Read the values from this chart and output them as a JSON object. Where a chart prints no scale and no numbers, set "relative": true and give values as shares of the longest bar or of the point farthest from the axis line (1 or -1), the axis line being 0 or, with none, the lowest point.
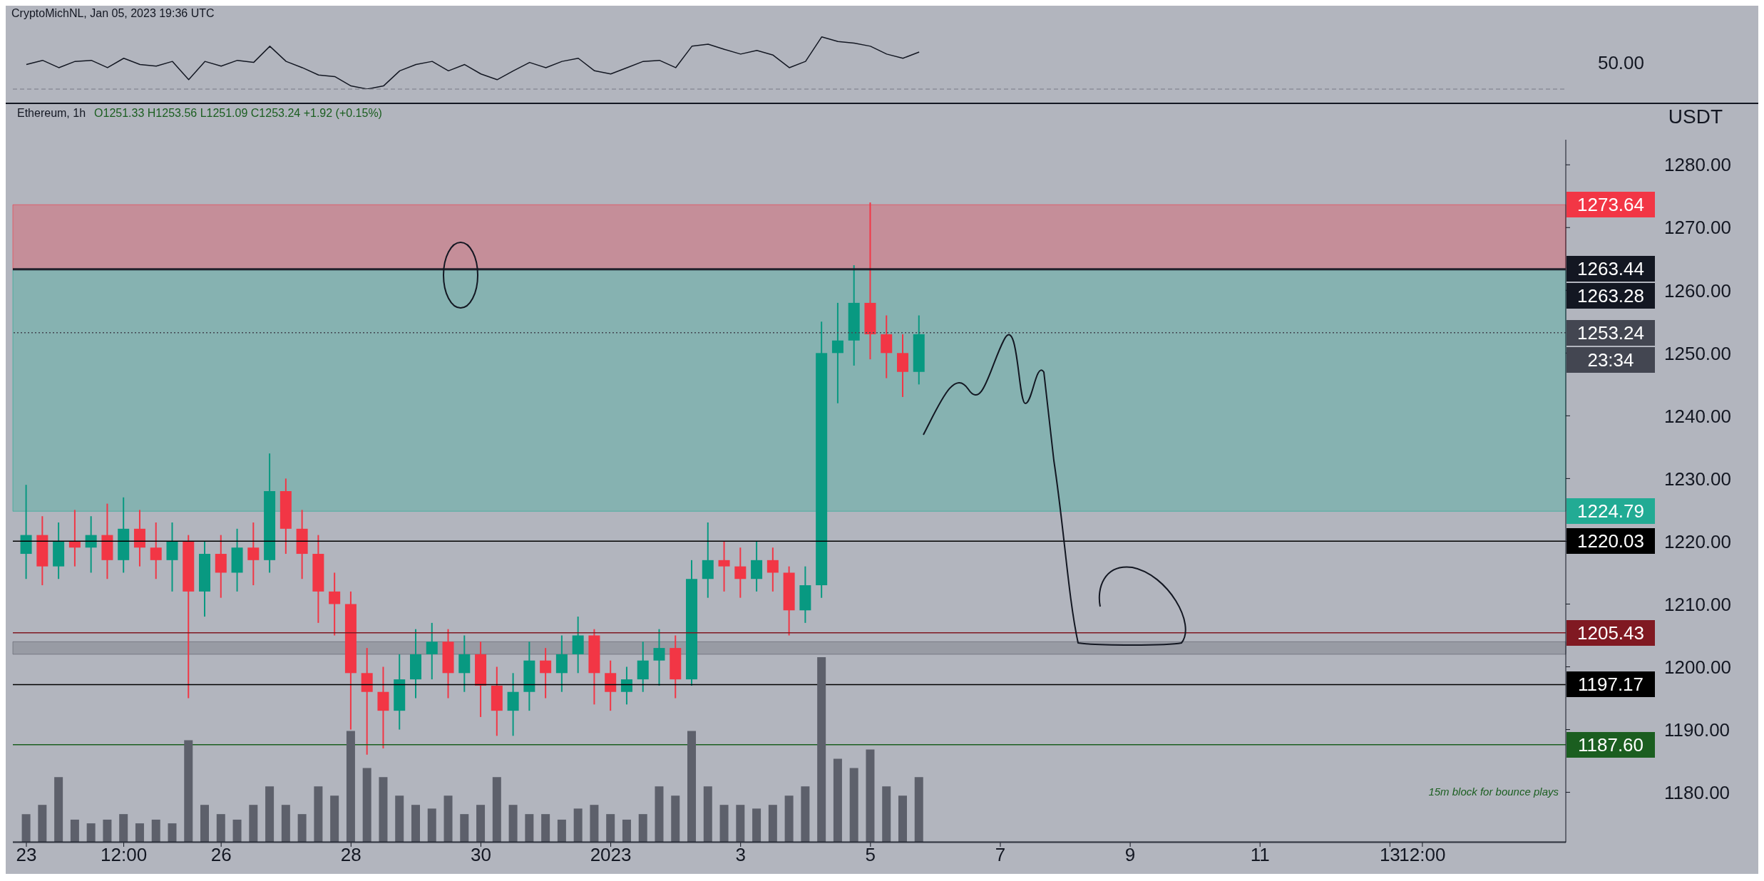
{
  "chart_data": [
    {
      "type": "line",
      "relative": true,
      "tick_labels": false,
      "color": "#131722",
      "xlim": [
        "2022-12-22T19:00",
        "2023-01-15T17:00"
      ],
      "x": [
        "2022-12-23T00:00",
        "2022-12-23T06:00",
        "2022-12-23T12:00",
        "2022-12-23T18:00",
        "2022-12-24T00:00",
        "2022-12-24T06:00",
        "2022-12-24T12:00",
        "2022-12-24T18:00",
        "2022-12-25T00:00",
        "2022-12-25T06:00",
        "2022-12-25T12:00",
        "2022-12-25T18:00",
        "2022-12-26T00:00",
        "2022-12-26T06:00",
        "2022-12-26T12:00",
        "2022-12-26T18:00",
        "2022-12-27T00:00",
        "2022-12-27T06:00",
        "2022-12-27T12:00",
        "2022-12-27T18:00",
        "2022-12-28T00:00",
        "2022-12-28T06:00",
        "2022-12-28T12:00",
        "2022-12-28T18:00",
        "2022-12-29T00:00",
        "2022-12-29T06:00",
        "2022-12-29T12:00",
        "2022-12-29T18:00",
        "2022-12-30T00:00",
        "2022-12-30T06:00",
        "2022-12-30T12:00",
        "2022-12-30T18:00",
        "2022-12-31T00:00",
        "2022-12-31T06:00",
        "2022-12-31T12:00",
        "2022-12-31T18:00",
        "2023-01-01T00:00",
        "2023-01-01T06:00",
        "2023-01-01T12:00",
        "2023-01-01T18:00",
        "2023-01-02T00:00",
        "2023-01-02T06:00",
        "2023-01-02T12:00",
        "2023-01-02T18:00",
        "2023-01-03T00:00",
        "2023-01-03T06:00",
        "2023-01-03T12:00",
        "2023-01-03T18:00",
        "2023-01-04T00:00",
        "2023-01-04T06:00",
        "2023-01-04T12:00",
        "2023-01-04T18:00",
        "2023-01-05T00:00",
        "2023-01-05T06:00",
        "2023-01-05T12:00",
        "2023-01-05T18:00"
      ],
      "values": [
        0.47,
        0.55,
        0.41,
        0.53,
        0.55,
        0.41,
        0.59,
        0.47,
        0.44,
        0.53,
        0.18,
        0.53,
        0.44,
        0.55,
        0.51,
        0.82,
        0.53,
        0.41,
        0.27,
        0.24,
        0.06,
        0,
        0.06,
        0.35,
        0.47,
        0.53,
        0.35,
        0.47,
        0.29,
        0.18,
        0.35,
        0.51,
        0.41,
        0.53,
        0.59,
        0.35,
        0.29,
        0.41,
        0.53,
        0.55,
        0.41,
        0.82,
        0.86,
        0.76,
        0.67,
        0.74,
        0.65,
        0.41,
        0.53,
        1,
        0.91,
        0.88,
        0.82,
        0.67,
        0.59,
        0.71
      ],
      "annotations": [
        "50.00"
      ]
    },
    {
      "type": "candlestick",
      "title": "Ethereum, 1h",
      "subtitle": "O1251.33 H1253.56 L1251.09 C1253.24 +1.92 (+0.15%)",
      "ylabel": "USDT",
      "annotations": [
        "CryptoMichNL, Jan 05, 2023 19:36 UTC",
        "23:34",
        "15m block for bounce plays"
      ],
      "xlim": [
        "2022-12-22T19:00",
        "2023-01-15T17:00"
      ],
      "xticks": [
        {
          "value": "2022-12-23",
          "label": "23"
        },
        {
          "value": "2022-12-24T12:00",
          "label": "12:00"
        },
        {
          "value": "2022-12-26",
          "label": "26"
        },
        {
          "value": "2022-12-28",
          "label": "28"
        },
        {
          "value": "2022-12-30",
          "label": "30"
        },
        {
          "value": "2023-01-01",
          "label": "2023"
        },
        {
          "value": "2023-01-03",
          "label": "3"
        },
        {
          "value": "2023-01-05",
          "label": "5"
        },
        {
          "value": "2023-01-07",
          "label": "7"
        },
        {
          "value": "2023-01-09",
          "label": "9"
        },
        {
          "value": "2023-01-11",
          "label": "11"
        },
        {
          "value": "2023-01-13",
          "label": "13"
        },
        {
          "value": "2023-01-13T12:00",
          "label": "12:00"
        }
      ],
      "ylim": [
        1172,
        1284
      ],
      "yticks": [
        {
          "value": 1180,
          "label": "1180.00"
        },
        {
          "value": 1190,
          "label": "1190.00"
        },
        {
          "value": 1200,
          "label": "1200.00"
        },
        {
          "value": 1210,
          "label": "1210.00"
        },
        {
          "value": 1220,
          "label": "1220.00"
        },
        {
          "value": 1230,
          "label": "1230.00"
        },
        {
          "value": 1240,
          "label": "1240.00"
        },
        {
          "value": 1250,
          "label": "1250.00"
        },
        {
          "value": 1260,
          "label": "1260.00"
        },
        {
          "value": 1270,
          "label": "1270.00"
        },
        {
          "value": 1280,
          "label": "1280.00"
        }
      ],
      "x": [
        "2022-12-23T00:00",
        "2022-12-23T06:00",
        "2022-12-23T12:00",
        "2022-12-23T18:00",
        "2022-12-24T00:00",
        "2022-12-24T06:00",
        "2022-12-24T12:00",
        "2022-12-24T18:00",
        "2022-12-25T00:00",
        "2022-12-25T06:00",
        "2022-12-25T12:00",
        "2022-12-25T18:00",
        "2022-12-26T00:00",
        "2022-12-26T06:00",
        "2022-12-26T12:00",
        "2022-12-26T18:00",
        "2022-12-27T00:00",
        "2022-12-27T06:00",
        "2022-12-27T12:00",
        "2022-12-27T18:00",
        "2022-12-28T00:00",
        "2022-12-28T06:00",
        "2022-12-28T12:00",
        "2022-12-28T18:00",
        "2022-12-29T00:00",
        "2022-12-29T06:00",
        "2022-12-29T12:00",
        "2022-12-29T18:00",
        "2022-12-30T00:00",
        "2022-12-30T06:00",
        "2022-12-30T12:00",
        "2022-12-30T18:00",
        "2022-12-31T00:00",
        "2022-12-31T06:00",
        "2022-12-31T12:00",
        "2022-12-31T18:00",
        "2023-01-01T00:00",
        "2023-01-01T06:00",
        "2023-01-01T12:00",
        "2023-01-01T18:00",
        "2023-01-02T00:00",
        "2023-01-02T06:00",
        "2023-01-02T12:00",
        "2023-01-02T18:00",
        "2023-01-03T00:00",
        "2023-01-03T06:00",
        "2023-01-03T12:00",
        "2023-01-03T18:00",
        "2023-01-04T00:00",
        "2023-01-04T06:00",
        "2023-01-04T12:00",
        "2023-01-04T18:00",
        "2023-01-05T00:00",
        "2023-01-05T06:00",
        "2023-01-05T12:00",
        "2023-01-05T18:00"
      ],
      "ohlc": [
        [
          1218,
          1229,
          1214,
          1221
        ],
        [
          1221,
          1224,
          1213,
          1216
        ],
        [
          1216,
          1223,
          1214,
          1220
        ],
        [
          1220,
          1225,
          1216,
          1219
        ],
        [
          1219,
          1224,
          1215,
          1221
        ],
        [
          1221,
          1226,
          1214,
          1217
        ],
        [
          1217,
          1227,
          1215,
          1222
        ],
        [
          1222,
          1225,
          1216,
          1219
        ],
        [
          1219,
          1223,
          1214,
          1217
        ],
        [
          1217,
          1223,
          1212,
          1220
        ],
        [
          1220,
          1221,
          1195,
          1212
        ],
        [
          1212,
          1220,
          1208,
          1218
        ],
        [
          1218,
          1221,
          1211,
          1215
        ],
        [
          1215,
          1222,
          1212,
          1219
        ],
        [
          1219,
          1223,
          1213,
          1217
        ],
        [
          1217,
          1234,
          1215,
          1228
        ],
        [
          1228,
          1230,
          1218,
          1222
        ],
        [
          1222,
          1225,
          1214,
          1218
        ],
        [
          1218,
          1221,
          1207,
          1212
        ],
        [
          1212,
          1215,
          1205,
          1210
        ],
        [
          1210,
          1212,
          1190,
          1199
        ],
        [
          1199,
          1203,
          1186,
          1196
        ],
        [
          1196,
          1200,
          1187,
          1193
        ],
        [
          1193,
          1202,
          1190,
          1198
        ],
        [
          1198,
          1206,
          1195,
          1202
        ],
        [
          1202,
          1207,
          1198,
          1204
        ],
        [
          1204,
          1206,
          1195,
          1199
        ],
        [
          1199,
          1205,
          1196,
          1202
        ],
        [
          1202,
          1204,
          1192,
          1197
        ],
        [
          1197,
          1200,
          1189,
          1193
        ],
        [
          1193,
          1199,
          1189,
          1196
        ],
        [
          1196,
          1204,
          1193,
          1201
        ],
        [
          1201,
          1203,
          1195,
          1199
        ],
        [
          1199,
          1205,
          1196,
          1202
        ],
        [
          1202,
          1208,
          1199,
          1205
        ],
        [
          1205,
          1206,
          1194,
          1199
        ],
        [
          1199,
          1201,
          1193,
          1196
        ],
        [
          1196,
          1200,
          1194,
          1198
        ],
        [
          1198,
          1204,
          1196,
          1201
        ],
        [
          1201,
          1206,
          1197,
          1203
        ],
        [
          1203,
          1205,
          1195,
          1198
        ],
        [
          1198,
          1217,
          1197,
          1214
        ],
        [
          1214,
          1223,
          1211,
          1217
        ],
        [
          1217,
          1220,
          1212,
          1216
        ],
        [
          1216,
          1219,
          1211,
          1214
        ],
        [
          1214,
          1220,
          1212,
          1217
        ],
        [
          1217,
          1219,
          1212,
          1215
        ],
        [
          1215,
          1216,
          1205,
          1209
        ],
        [
          1209,
          1216,
          1207,
          1213
        ],
        [
          1213,
          1255,
          1211,
          1250
        ],
        [
          1250,
          1258,
          1242,
          1252
        ],
        [
          1252,
          1264,
          1248,
          1258
        ],
        [
          1258,
          1274,
          1249,
          1253
        ],
        [
          1253,
          1256,
          1246,
          1250
        ],
        [
          1250,
          1253,
          1243,
          1247
        ],
        [
          1247,
          1256,
          1245,
          1253
        ]
      ],
      "colors": [
        "#089981",
        "#f23645",
        "#089981",
        "#f23645",
        "#089981",
        "#f23645",
        "#089981",
        "#f23645",
        "#f23645",
        "#089981",
        "#f23645",
        "#089981",
        "#f23645",
        "#089981",
        "#f23645",
        "#089981",
        "#f23645",
        "#f23645",
        "#f23645",
        "#f23645",
        "#f23645",
        "#f23645",
        "#f23645",
        "#089981",
        "#089981",
        "#089981",
        "#f23645",
        "#089981",
        "#f23645",
        "#f23645",
        "#089981",
        "#089981",
        "#f23645",
        "#089981",
        "#089981",
        "#f23645",
        "#f23645",
        "#089981",
        "#089981",
        "#089981",
        "#f23645",
        "#089981",
        "#089981",
        "#f23645",
        "#f23645",
        "#089981",
        "#f23645",
        "#f23645",
        "#089981",
        "#089981",
        "#089981",
        "#089981",
        "#f23645",
        "#f23645",
        "#f23645",
        "#089981"
      ],
      "bands": [
        {
          "axis": "y",
          "from": 1263.28,
          "to": 1273.64,
          "label": "1273.64",
          "color": "#f23645"
        },
        {
          "axis": "y",
          "from": 1224.79,
          "to": 1263.28,
          "label": "1224.79",
          "color": "#22ab94"
        },
        {
          "axis": "y",
          "from": 1202,
          "to": 1204,
          "color": "#5d606b"
        }
      ],
      "ref_lines": [
        {
          "axis": "y",
          "value": 1263.44,
          "label": "1263.44",
          "color": "#131722"
        },
        {
          "axis": "y",
          "value": 1263.28,
          "label": "1263.28",
          "color": "#131722"
        },
        {
          "axis": "y",
          "value": 1253.24,
          "label": "1253.24",
          "color": "#434651",
          "line_style": "dotted"
        },
        {
          "axis": "y",
          "value": 1220.03,
          "label": "1220.03",
          "color": "#000000"
        },
        {
          "axis": "y",
          "value": 1205.43,
          "label": "1205.43",
          "color": "#801922"
        },
        {
          "axis": "y",
          "value": 1197.17,
          "label": "1197.17",
          "color": "#000000"
        },
        {
          "axis": "y",
          "value": 1187.6,
          "label": "1187.60",
          "color": "#1b5e20"
        }
      ]
    },
    {
      "type": "bar",
      "relative": true,
      "tick_labels": false,
      "color": "#5d606b",
      "xlim": [
        "2022-12-22T19:00",
        "2023-01-15T17:00"
      ],
      "x": [
        "2022-12-23T00:00",
        "2022-12-23T06:00",
        "2022-12-23T12:00",
        "2022-12-23T18:00",
        "2022-12-24T00:00",
        "2022-12-24T06:00",
        "2022-12-24T12:00",
        "2022-12-24T18:00",
        "2022-12-25T00:00",
        "2022-12-25T06:00",
        "2022-12-25T12:00",
        "2022-12-25T18:00",
        "2022-12-26T00:00",
        "2022-12-26T06:00",
        "2022-12-26T12:00",
        "2022-12-26T18:00",
        "2022-12-27T00:00",
        "2022-12-27T06:00",
        "2022-12-27T12:00",
        "2022-12-27T18:00",
        "2022-12-28T00:00",
        "2022-12-28T06:00",
        "2022-12-28T12:00",
        "2022-12-28T18:00",
        "2022-12-29T00:00",
        "2022-12-29T06:00",
        "2022-12-29T12:00",
        "2022-12-29T18:00",
        "2022-12-30T00:00",
        "2022-12-30T06:00",
        "2022-12-30T12:00",
        "2022-12-30T18:00",
        "2022-12-31T00:00",
        "2022-12-31T06:00",
        "2022-12-31T12:00",
        "2022-12-31T18:00",
        "2023-01-01T00:00",
        "2023-01-01T06:00",
        "2023-01-01T12:00",
        "2023-01-01T18:00",
        "2023-01-02T00:00",
        "2023-01-02T06:00",
        "2023-01-02T12:00",
        "2023-01-02T18:00",
        "2023-01-03T00:00",
        "2023-01-03T06:00",
        "2023-01-03T12:00",
        "2023-01-03T18:00",
        "2023-01-04T00:00",
        "2023-01-04T06:00",
        "2023-01-04T12:00",
        "2023-01-04T18:00",
        "2023-01-05T00:00",
        "2023-01-05T06:00",
        "2023-01-05T12:00",
        "2023-01-05T18:00"
      ],
      "values": [
        0.15,
        0.2,
        0.35,
        0.12,
        0.1,
        0.12,
        0.15,
        0.1,
        0.12,
        0.1,
        0.55,
        0.2,
        0.15,
        0.12,
        0.2,
        0.3,
        0.2,
        0.15,
        0.3,
        0.25,
        0.6,
        0.4,
        0.35,
        0.25,
        0.2,
        0.18,
        0.25,
        0.15,
        0.2,
        0.35,
        0.2,
        0.15,
        0.15,
        0.12,
        0.18,
        0.2,
        0.15,
        0.12,
        0.15,
        0.3,
        0.25,
        0.6,
        0.3,
        0.2,
        0.2,
        0.18,
        0.2,
        0.25,
        0.3,
        1,
        0.45,
        0.4,
        0.5,
        0.3,
        0.25,
        0.35
      ]
    }
  ]
}
